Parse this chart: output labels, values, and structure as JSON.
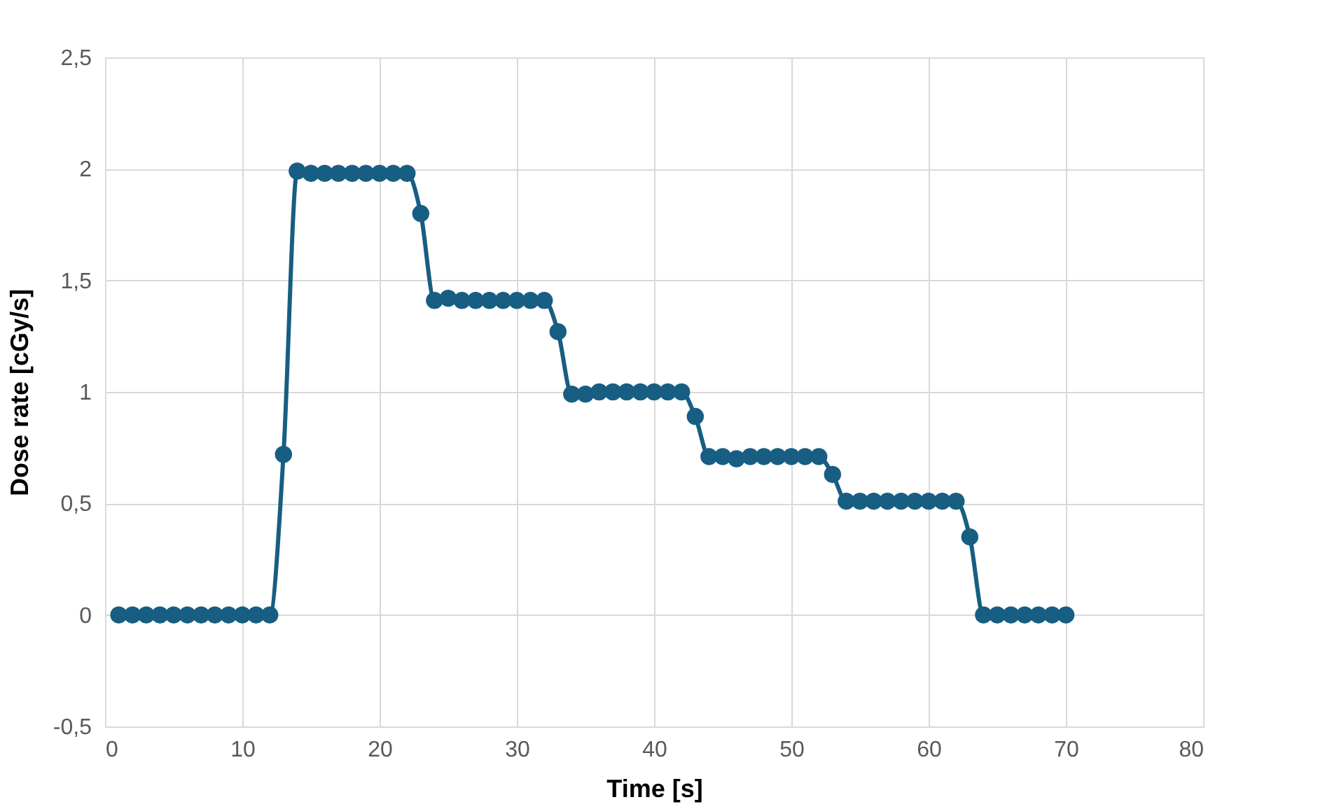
{
  "chart_data": {
    "type": "line",
    "xlabel": "Time [s]",
    "ylabel": "Dose rate [cGy/s]",
    "x": [
      1,
      2,
      3,
      4,
      5,
      6,
      7,
      8,
      9,
      10,
      11,
      12,
      13,
      14,
      15,
      16,
      17,
      18,
      19,
      20,
      21,
      22,
      23,
      24,
      25,
      26,
      27,
      28,
      29,
      30,
      31,
      32,
      33,
      34,
      35,
      36,
      37,
      38,
      39,
      40,
      41,
      42,
      43,
      44,
      45,
      46,
      47,
      48,
      49,
      50,
      51,
      52,
      53,
      54,
      55,
      56,
      57,
      58,
      59,
      60,
      61,
      62,
      63,
      64,
      65,
      66,
      67,
      68,
      69,
      70
    ],
    "series": [
      {
        "color": "#175e82",
        "values": [
          0,
          0,
          0,
          0,
          0,
          0,
          0,
          0,
          0,
          0,
          0,
          0,
          0.72,
          1.99,
          1.98,
          1.98,
          1.98,
          1.98,
          1.98,
          1.98,
          1.98,
          1.98,
          1.8,
          1.41,
          1.42,
          1.41,
          1.41,
          1.41,
          1.41,
          1.41,
          1.41,
          1.41,
          1.27,
          0.99,
          0.99,
          1.0,
          1.0,
          1.0,
          1.0,
          1.0,
          1.0,
          1.0,
          0.89,
          0.71,
          0.71,
          0.7,
          0.71,
          0.71,
          0.71,
          0.71,
          0.71,
          0.71,
          0.63,
          0.51,
          0.51,
          0.51,
          0.51,
          0.51,
          0.51,
          0.51,
          0.51,
          0.51,
          0.35,
          0,
          0,
          0,
          0,
          0,
          0,
          0
        ]
      }
    ],
    "xlim": [
      0,
      80
    ],
    "xticks": [
      0,
      10,
      20,
      30,
      40,
      50,
      60,
      70,
      80
    ],
    "ylim": [
      -0.5,
      2.5
    ],
    "yticks": [
      {
        "value": -0.5,
        "label": "-0,5"
      },
      0,
      {
        "value": 0.5,
        "label": "0,5"
      },
      1,
      {
        "value": 1.5,
        "label": "1,5"
      },
      2,
      {
        "value": 2.5,
        "label": "2,5"
      }
    ],
    "grid": true,
    "marker": "circle",
    "line_style": "solid"
  }
}
